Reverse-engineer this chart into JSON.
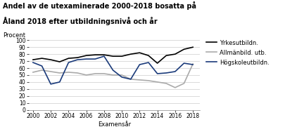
{
  "title_line1": "Andel av de utexaminerade 2000-2018 bosatta på",
  "title_line2": "Åland 2018 efter utbildningsnivå och år",
  "ylabel": "Procent",
  "xlabel": "Examensår",
  "ylim": [
    0,
    100
  ],
  "yticks": [
    0,
    10,
    20,
    30,
    40,
    50,
    60,
    70,
    80,
    90,
    100
  ],
  "xticks": [
    2000,
    2002,
    2004,
    2006,
    2008,
    2010,
    2012,
    2014,
    2016,
    2018
  ],
  "years": [
    2000,
    2001,
    2002,
    2003,
    2004,
    2005,
    2006,
    2007,
    2008,
    2009,
    2010,
    2011,
    2012,
    2013,
    2014,
    2015,
    2016,
    2017,
    2018
  ],
  "yrkesutbildn": [
    72,
    74,
    72,
    69,
    74,
    75,
    78,
    79,
    79,
    77,
    77,
    80,
    82,
    78,
    67,
    78,
    80,
    87,
    90
  ],
  "allmanbildn": [
    54,
    57,
    55,
    53,
    54,
    53,
    50,
    52,
    52,
    50,
    50,
    44,
    43,
    42,
    40,
    38,
    32,
    38,
    66
  ],
  "hogskolutbildn": [
    68,
    63,
    37,
    40,
    68,
    72,
    73,
    73,
    77,
    57,
    47,
    44,
    65,
    68,
    52,
    53,
    55,
    67,
    65
  ],
  "color_yrkesutbildn": "#000000",
  "color_allmanbildn": "#aaaaaa",
  "color_hogskolutbildn": "#1a3a7a",
  "legend_labels": [
    "Yrkesutbildn.",
    "Allmänbild. utb.",
    "Högskoleutbildn."
  ],
  "bg_color": "#ffffff",
  "linewidth": 1.2,
  "title_fontsize": 7.0,
  "tick_fontsize": 5.5,
  "label_fontsize": 6.0,
  "legend_fontsize": 6.0
}
